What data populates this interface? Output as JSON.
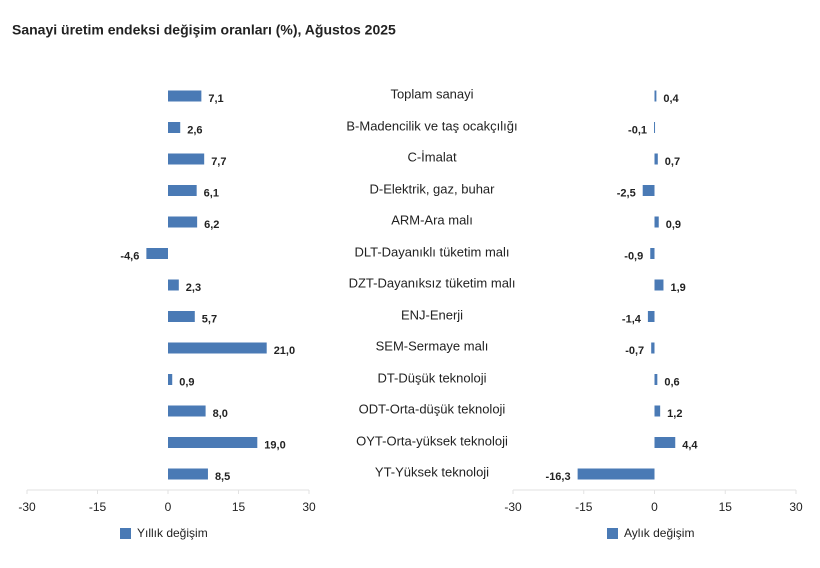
{
  "chart_data": {
    "type": "bar",
    "orientation": "horizontal",
    "title": "Sanayi üretim endeksi değişim oranları (%), Ağustos 2025",
    "categories": [
      "Toplam sanayi",
      "B-Madencilik ve taş ocakçılığı",
      "C-İmalat",
      "D-Elektrik, gaz, buhar",
      "ARM-Ara malı",
      "DLT-Dayanıklı tüketim malı",
      "DZT-Dayanıksız tüketim malı",
      "ENJ-Enerji",
      "SEM-Sermaye malı",
      "DT-Düşük teknoloji",
      "ODT-Orta-düşük teknoloji",
      "OYT-Orta-yüksek teknoloji",
      "YT-Yüksek teknoloji"
    ],
    "series": [
      {
        "name": "Yıllık değişim",
        "color": "#4a7ab5",
        "values": [
          7.1,
          2.6,
          7.7,
          6.1,
          6.2,
          -4.6,
          2.3,
          5.7,
          21.0,
          0.9,
          8.0,
          19.0,
          8.5
        ],
        "value_labels": [
          "7,1",
          "2,6",
          "7,7",
          "6,1",
          "6,2",
          "-4,6",
          "2,3",
          "5,7",
          "21,0",
          "0,9",
          "8,0",
          "19,0",
          "8,5"
        ]
      },
      {
        "name": "Aylık değişim",
        "color": "#4a7ab5",
        "values": [
          0.4,
          -0.1,
          0.7,
          -2.5,
          0.9,
          -0.9,
          1.9,
          -1.4,
          -0.7,
          0.6,
          1.2,
          4.4,
          -16.3
        ],
        "value_labels": [
          "0,4",
          "-0,1",
          "0,7",
          "-2,5",
          "0,9",
          "-0,9",
          "1,9",
          "-1,4",
          "-0,7",
          "0,6",
          "1,2",
          "4,4",
          "-16,3"
        ]
      }
    ],
    "xlim": [
      -30,
      30
    ],
    "xticks": [
      -30,
      -15,
      0,
      15,
      30
    ]
  }
}
